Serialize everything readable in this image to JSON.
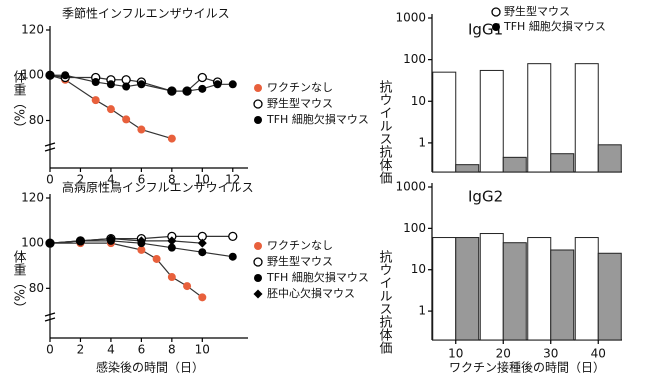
{
  "chart_data": [
    {
      "type": "line",
      "title": "季節性インフルエンザウイルス",
      "ylabel": "体重（%）",
      "xlim": [
        0,
        13
      ],
      "xticks": [
        0,
        2,
        4,
        6,
        8,
        10,
        12
      ],
      "ylim": [
        59,
        120
      ],
      "yticks": [
        80,
        100,
        120
      ],
      "legend": "right",
      "series": [
        {
          "name": "ワクチンなし",
          "color": "#e8603c",
          "marker": "circle",
          "x": [
            0,
            1,
            3,
            4,
            5,
            6,
            8
          ],
          "values": [
            100,
            98,
            89,
            85,
            80.5,
            76,
            72
          ]
        },
        {
          "name": "野生型マウス",
          "color": "#000000",
          "marker": "circle-open",
          "x": [
            0,
            1,
            3,
            4,
            5,
            6,
            8,
            9,
            10,
            11
          ],
          "values": [
            100,
            99,
            99,
            98,
            98,
            97,
            93,
            93,
            99,
            97
          ]
        },
        {
          "name": "TFH 細胞欠損マウス",
          "color": "#000000",
          "marker": "circle",
          "x": [
            0,
            1,
            3,
            4,
            5,
            6,
            8,
            9,
            10,
            11,
            12
          ],
          "values": [
            100,
            100,
            97,
            96,
            95,
            96,
            93,
            93,
            94,
            96,
            96
          ]
        }
      ]
    },
    {
      "type": "line",
      "title": "高病原性鳥インフルエンザウイルス",
      "ylabel": "体重（%）",
      "xlabel": "感染後の時間（日）",
      "xlim": [
        0,
        13
      ],
      "xticks": [
        0,
        2,
        4,
        6,
        8,
        10
      ],
      "ylim": [
        58,
        120
      ],
      "yticks": [
        80,
        100,
        120
      ],
      "legend": "right",
      "series": [
        {
          "name": "ワクチンなし",
          "color": "#e8603c",
          "marker": "circle",
          "x": [
            0,
            2,
            4,
            6,
            7,
            8,
            9,
            10
          ],
          "values": [
            100,
            100,
            100,
            97,
            93,
            85,
            81,
            76
          ]
        },
        {
          "name": "野生型マウス",
          "color": "#000000",
          "marker": "circle-open",
          "x": [
            0,
            2,
            4,
            6,
            8,
            10,
            12
          ],
          "values": [
            100,
            101,
            102,
            102,
            103,
            103,
            103
          ]
        },
        {
          "name": "TFH 細胞欠損マウス",
          "color": "#000000",
          "marker": "circle",
          "x": [
            0,
            2,
            4,
            6,
            8,
            10,
            12
          ],
          "values": [
            100,
            101,
            101,
            100,
            98,
            96,
            94
          ]
        },
        {
          "name": "胚中心欠損マウス",
          "color": "#000000",
          "marker": "diamond",
          "x": [
            0,
            2,
            4,
            6,
            8,
            10
          ],
          "values": [
            100,
            101,
            102,
            101,
            101,
            100
          ]
        }
      ]
    },
    {
      "type": "bar",
      "title": "IgG1",
      "ylabel": "抗ウイルス抗体価",
      "log": true,
      "ylim": [
        0.2,
        1000
      ],
      "yticks": [
        1,
        10,
        100,
        1000
      ],
      "legend": "upper right",
      "series": [
        {
          "name": "野生型マウス",
          "color": "#ffffff",
          "values": [
            50,
            55,
            80,
            80
          ]
        },
        {
          "name": "TFH 細胞欠損マウス",
          "color": "#999999",
          "values": [
            0.3,
            0.45,
            0.55,
            0.9
          ]
        }
      ]
    },
    {
      "type": "bar",
      "title": "IgG2",
      "ylabel": "抗ウイルス抗体価",
      "xlabel": "ワクチン接種後の時間（日）",
      "log": true,
      "categories": [
        "10",
        "20",
        "30",
        "40"
      ],
      "ylim": [
        0.2,
        1000
      ],
      "yticks": [
        1,
        10,
        100,
        1000
      ],
      "series": [
        {
          "color": "#ffffff",
          "values": [
            60,
            75,
            60,
            60
          ]
        },
        {
          "color": "#999999",
          "values": [
            60,
            45,
            30,
            25
          ]
        }
      ]
    }
  ]
}
